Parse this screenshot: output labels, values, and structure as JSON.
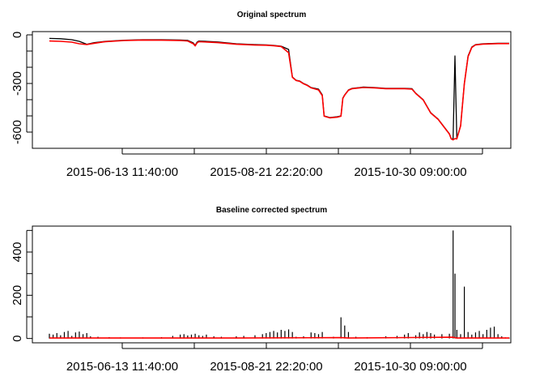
{
  "chart_data": [
    {
      "type": "line",
      "title": "Original spectrum",
      "xlabel": "",
      "ylabel": "",
      "x_tick_labels": [
        "2015-06-13 11:40:00",
        "2015-08-21 22:20:00",
        "2015-10-30 09:00:00"
      ],
      "y_tick_labels": [
        "0",
        "-300",
        "-600"
      ],
      "ylim": [
        -700,
        20
      ],
      "grid": false,
      "series": [
        {
          "color": "#000000",
          "points": [
            [
              0,
              -22
            ],
            [
              0.03,
              -24
            ],
            [
              0.06,
              -30
            ],
            [
              0.08,
              -40
            ],
            [
              0.1,
              -58
            ],
            [
              0.12,
              -48
            ],
            [
              0.15,
              -40
            ],
            [
              0.2,
              -33
            ],
            [
              0.25,
              -30
            ],
            [
              0.3,
              -30
            ],
            [
              0.35,
              -32
            ],
            [
              0.37,
              -34
            ],
            [
              0.385,
              -50
            ],
            [
              0.39,
              -65
            ],
            [
              0.395,
              -45
            ],
            [
              0.4,
              -38
            ],
            [
              0.45,
              -44
            ],
            [
              0.5,
              -55
            ],
            [
              0.55,
              -60
            ],
            [
              0.58,
              -62
            ],
            [
              0.6,
              -65
            ],
            [
              0.62,
              -70
            ],
            [
              0.64,
              -90
            ],
            [
              0.65,
              -260
            ],
            [
              0.66,
              -280
            ],
            [
              0.67,
              -285
            ],
            [
              0.68,
              -300
            ],
            [
              0.69,
              -310
            ],
            [
              0.7,
              -325
            ],
            [
              0.72,
              -335
            ],
            [
              0.73,
              -370
            ],
            [
              0.735,
              -500
            ],
            [
              0.75,
              -510
            ],
            [
              0.77,
              -505
            ],
            [
              0.78,
              -500
            ],
            [
              0.785,
              -390
            ],
            [
              0.79,
              -370
            ],
            [
              0.8,
              -340
            ],
            [
              0.81,
              -330
            ],
            [
              0.83,
              -325
            ],
            [
              0.84,
              -322
            ],
            [
              0.87,
              -325
            ],
            [
              0.9,
              -330
            ],
            [
              0.93,
              -330
            ],
            [
              0.95,
              -330
            ],
            [
              0.97,
              -332
            ],
            [
              0.98,
              -360
            ],
            [
              1.0,
              -400
            ],
            [
              1.02,
              -480
            ],
            [
              1.04,
              -520
            ],
            [
              1.06,
              -580
            ],
            [
              1.07,
              -610
            ],
            [
              1.075,
              -640
            ],
            [
              1.08,
              -645
            ],
            [
              1.085,
              -130
            ],
            [
              1.09,
              -640
            ],
            [
              1.1,
              -560
            ],
            [
              1.11,
              -300
            ],
            [
              1.12,
              -130
            ],
            [
              1.13,
              -75
            ],
            [
              1.14,
              -60
            ],
            [
              1.16,
              -55
            ],
            [
              1.2,
              -52
            ],
            [
              1.23,
              -52
            ]
          ]
        },
        {
          "color": "#ff0000",
          "points": [
            [
              0,
              -38
            ],
            [
              0.03,
              -40
            ],
            [
              0.06,
              -45
            ],
            [
              0.08,
              -55
            ],
            [
              0.1,
              -60
            ],
            [
              0.12,
              -52
            ],
            [
              0.15,
              -42
            ],
            [
              0.2,
              -35
            ],
            [
              0.25,
              -32
            ],
            [
              0.3,
              -33
            ],
            [
              0.35,
              -35
            ],
            [
              0.37,
              -38
            ],
            [
              0.385,
              -55
            ],
            [
              0.39,
              -68
            ],
            [
              0.395,
              -50
            ],
            [
              0.4,
              -42
            ],
            [
              0.45,
              -48
            ],
            [
              0.5,
              -58
            ],
            [
              0.55,
              -63
            ],
            [
              0.58,
              -64
            ],
            [
              0.6,
              -67
            ],
            [
              0.62,
              -72
            ],
            [
              0.64,
              -110
            ],
            [
              0.65,
              -262
            ],
            [
              0.66,
              -282
            ],
            [
              0.67,
              -287
            ],
            [
              0.68,
              -302
            ],
            [
              0.69,
              -312
            ],
            [
              0.7,
              -327
            ],
            [
              0.72,
              -340
            ],
            [
              0.73,
              -375
            ],
            [
              0.735,
              -502
            ],
            [
              0.75,
              -512
            ],
            [
              0.77,
              -508
            ],
            [
              0.78,
              -502
            ],
            [
              0.785,
              -392
            ],
            [
              0.79,
              -372
            ],
            [
              0.8,
              -342
            ],
            [
              0.81,
              -332
            ],
            [
              0.83,
              -327
            ],
            [
              0.84,
              -325
            ],
            [
              0.87,
              -327
            ],
            [
              0.9,
              -332
            ],
            [
              0.93,
              -332
            ],
            [
              0.95,
              -332
            ],
            [
              0.97,
              -335
            ],
            [
              0.98,
              -362
            ],
            [
              1.0,
              -402
            ],
            [
              1.02,
              -482
            ],
            [
              1.04,
              -522
            ],
            [
              1.06,
              -582
            ],
            [
              1.07,
              -612
            ],
            [
              1.075,
              -642
            ],
            [
              1.08,
              -648
            ],
            [
              1.085,
              -640
            ],
            [
              1.09,
              -642
            ],
            [
              1.1,
              -562
            ],
            [
              1.11,
              -302
            ],
            [
              1.12,
              -135
            ],
            [
              1.13,
              -78
            ],
            [
              1.14,
              -62
            ],
            [
              1.16,
              -57
            ],
            [
              1.2,
              -54
            ],
            [
              1.23,
              -54
            ]
          ]
        }
      ]
    },
    {
      "type": "line",
      "title": "Baseline corrected spectrum",
      "xlabel": "",
      "ylabel": "",
      "x_tick_labels": [
        "2015-06-13 11:40:00",
        "2015-08-21 22:20:00",
        "2015-10-30 09:00:00"
      ],
      "y_tick_labels": [
        "0",
        "200",
        "400"
      ],
      "ylim": [
        -20,
        520
      ],
      "grid": false,
      "series": [
        {
          "color": "#000000",
          "spikes": [
            [
              0.0,
              22
            ],
            [
              0.01,
              18
            ],
            [
              0.02,
              25
            ],
            [
              0.03,
              15
            ],
            [
              0.04,
              30
            ],
            [
              0.05,
              35
            ],
            [
              0.06,
              12
            ],
            [
              0.07,
              28
            ],
            [
              0.08,
              32
            ],
            [
              0.09,
              20
            ],
            [
              0.1,
              25
            ],
            [
              0.11,
              10
            ],
            [
              0.13,
              8
            ],
            [
              0.16,
              6
            ],
            [
              0.19,
              5
            ],
            [
              0.25,
              5
            ],
            [
              0.3,
              6
            ],
            [
              0.33,
              12
            ],
            [
              0.35,
              18
            ],
            [
              0.36,
              20
            ],
            [
              0.37,
              14
            ],
            [
              0.38,
              18
            ],
            [
              0.39,
              22
            ],
            [
              0.4,
              15
            ],
            [
              0.41,
              12
            ],
            [
              0.42,
              18
            ],
            [
              0.44,
              10
            ],
            [
              0.46,
              8
            ],
            [
              0.5,
              10
            ],
            [
              0.52,
              12
            ],
            [
              0.55,
              15
            ],
            [
              0.57,
              20
            ],
            [
              0.58,
              25
            ],
            [
              0.59,
              30
            ],
            [
              0.6,
              35
            ],
            [
              0.61,
              28
            ],
            [
              0.62,
              40
            ],
            [
              0.63,
              35
            ],
            [
              0.64,
              42
            ],
            [
              0.65,
              30
            ],
            [
              0.66,
              8
            ],
            [
              0.68,
              10
            ],
            [
              0.7,
              28
            ],
            [
              0.71,
              25
            ],
            [
              0.72,
              20
            ],
            [
              0.73,
              30
            ],
            [
              0.76,
              8
            ],
            [
              0.78,
              98
            ],
            [
              0.79,
              60
            ],
            [
              0.8,
              30
            ],
            [
              0.82,
              8
            ],
            [
              0.85,
              6
            ],
            [
              0.9,
              10
            ],
            [
              0.93,
              12
            ],
            [
              0.95,
              18
            ],
            [
              0.96,
              25
            ],
            [
              0.98,
              15
            ],
            [
              0.99,
              28
            ],
            [
              1.0,
              20
            ],
            [
              1.01,
              30
            ],
            [
              1.02,
              25
            ],
            [
              1.03,
              18
            ],
            [
              1.05,
              20
            ],
            [
              1.07,
              22
            ],
            [
              1.08,
              500
            ],
            [
              1.085,
              300
            ],
            [
              1.09,
              40
            ],
            [
              1.1,
              20
            ],
            [
              1.11,
              240
            ],
            [
              1.12,
              30
            ],
            [
              1.13,
              18
            ],
            [
              1.14,
              28
            ],
            [
              1.15,
              35
            ],
            [
              1.16,
              20
            ],
            [
              1.17,
              40
            ],
            [
              1.18,
              50
            ],
            [
              1.19,
              55
            ],
            [
              1.2,
              20
            ],
            [
              1.21,
              10
            ],
            [
              1.22,
              5
            ],
            [
              1.23,
              4
            ]
          ]
        },
        {
          "color": "#ff0000",
          "points": [
            [
              0,
              2
            ],
            [
              0.5,
              2
            ],
            [
              0.78,
              4
            ],
            [
              0.8,
              2
            ],
            [
              1.08,
              6
            ],
            [
              1.09,
              2
            ],
            [
              1.23,
              2
            ]
          ]
        }
      ]
    }
  ]
}
